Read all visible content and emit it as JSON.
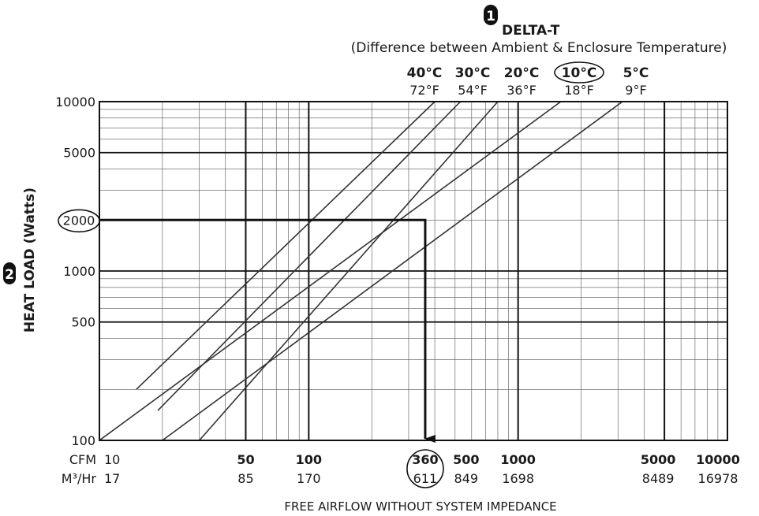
{
  "chart_data": {
    "type": "line",
    "x_scale": "log",
    "y_scale": "log",
    "xlim": [
      10,
      10000
    ],
    "ylim": [
      100,
      10000
    ],
    "grid": true,
    "header": {
      "step_marker": "1",
      "title": "DELTA-T",
      "subtitle": "(Difference between Ambient & Enclosure Temperature)"
    },
    "ylabel": "HEAT LOAD (Watts)",
    "ylabel_step_marker": "2",
    "xlabel": "FREE AIRFLOW WITHOUT SYSTEM IMPEDANCE",
    "y_ticks": [
      {
        "value": 10000,
        "label": "10000"
      },
      {
        "value": 5000,
        "label": "5000"
      },
      {
        "value": 2000,
        "label": "2000",
        "highlighted": true
      },
      {
        "value": 1000,
        "label": "1000"
      },
      {
        "value": 500,
        "label": "500"
      },
      {
        "value": 100,
        "label": "100"
      }
    ],
    "x_row_labels": {
      "cfm": "CFM",
      "m3hr": "M³/Hr"
    },
    "x_ticks": [
      {
        "value": 10,
        "cfm": "10",
        "m3hr": "17",
        "bold": false
      },
      {
        "value": 50,
        "cfm": "50",
        "m3hr": "85",
        "bold": true
      },
      {
        "value": 100,
        "cfm": "100",
        "m3hr": "170",
        "bold": true
      },
      {
        "value": 360,
        "cfm": "360",
        "m3hr": "611",
        "bold": true,
        "highlighted": true
      },
      {
        "value": 500,
        "cfm": "500",
        "m3hr": "849",
        "bold": true
      },
      {
        "value": 1000,
        "cfm": "1000",
        "m3hr": "1698",
        "bold": true
      },
      {
        "value": 5000,
        "cfm": "5000",
        "m3hr": "8489",
        "bold": true
      },
      {
        "value": 10000,
        "cfm": "10000",
        "m3hr": "16978",
        "bold": true
      }
    ],
    "series": [
      {
        "name": "40°C",
        "fahrenheit": "72°F",
        "x": [
          15,
          400
        ],
        "y": [
          200,
          10000
        ]
      },
      {
        "name": "30°C",
        "fahrenheit": "54°F",
        "x": [
          19,
          530
        ],
        "y": [
          150,
          10000
        ]
      },
      {
        "name": "20°C",
        "fahrenheit": "36°F",
        "x": [
          30,
          800
        ],
        "y": [
          100,
          10000
        ],
        "highlighted": false
      },
      {
        "name": "10°C",
        "fahrenheit": "18°F",
        "x": [
          10,
          1600
        ],
        "y": [
          100,
          10000
        ],
        "highlighted": true
      },
      {
        "name": "5°C",
        "fahrenheit": "9°F",
        "x": [
          20,
          3150
        ],
        "y": [
          100,
          10000
        ]
      }
    ],
    "example": {
      "heat_load_watts": 2000,
      "airflow_cfm": 360,
      "airflow_m3hr": 611
    }
  }
}
